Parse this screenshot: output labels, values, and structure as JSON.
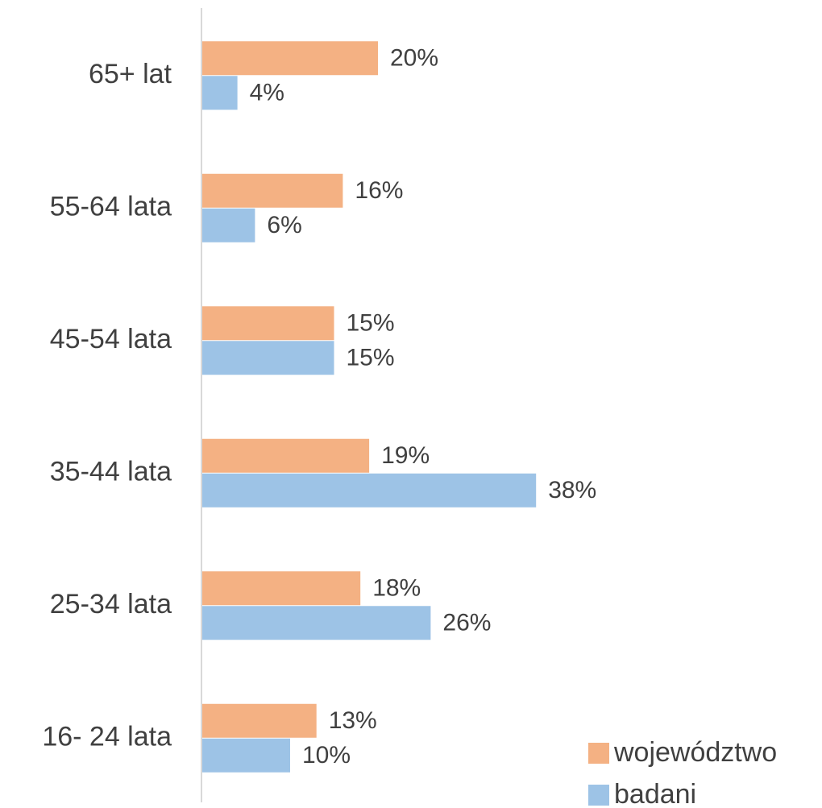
{
  "chart_data": {
    "type": "bar",
    "orientation": "horizontal",
    "categories": [
      "65+ lat",
      "55-64 lata",
      "45-54 lata",
      "35-44 lata",
      "25-34 lata",
      "16- 24 lata"
    ],
    "series": [
      {
        "name": "województwo",
        "color": "#f4b183",
        "values": [
          20,
          16,
          15,
          19,
          18,
          13
        ],
        "value_labels": [
          "20%",
          "16%",
          "15%",
          "19%",
          "18%",
          "13%"
        ]
      },
      {
        "name": "badani",
        "color": "#9dc3e6",
        "values": [
          4,
          6,
          15,
          38,
          26,
          10
        ],
        "value_labels": [
          "4%",
          "6%",
          "15%",
          "38%",
          "26%",
          "10%"
        ]
      }
    ],
    "legend": "bottom-right"
  }
}
